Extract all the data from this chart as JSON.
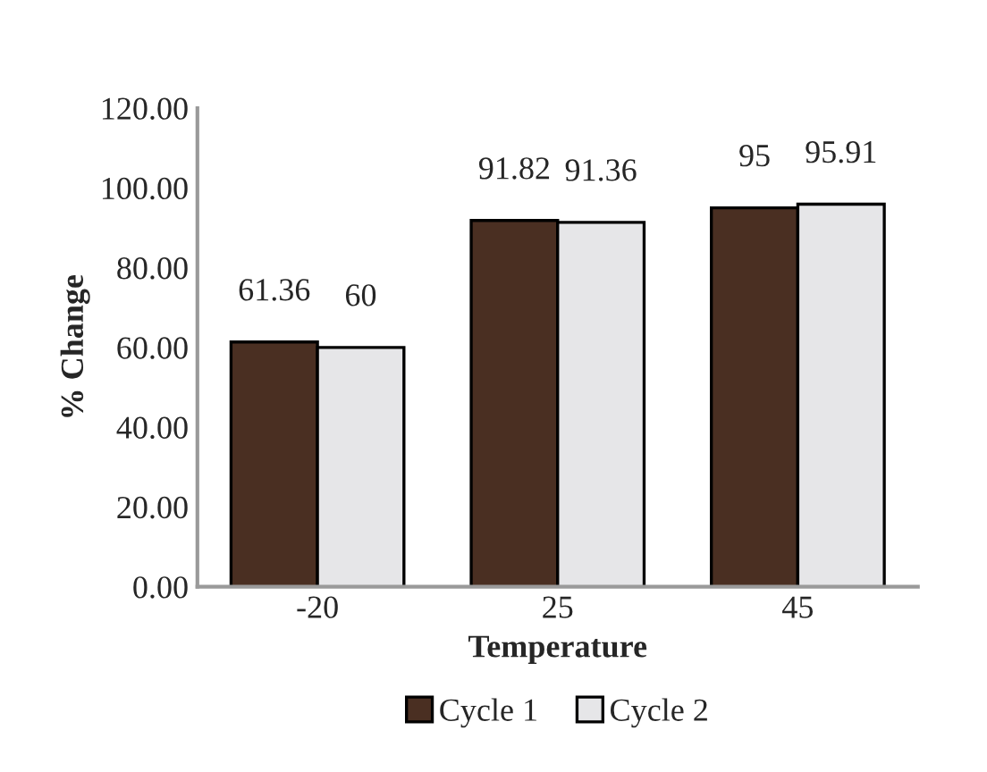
{
  "chart_data": {
    "type": "bar",
    "xlabel": "Temperature",
    "ylabel": "% Change",
    "categories": [
      "-20",
      "25",
      "45"
    ],
    "series": [
      {
        "name": "Cycle 1",
        "color": "#4a2f22",
        "values": [
          61.36,
          91.82,
          95
        ]
      },
      {
        "name": "Cycle 2",
        "color": "#e6e6e8",
        "values": [
          60,
          91.36,
          95.91
        ]
      }
    ],
    "ylim": [
      0,
      120
    ],
    "yticks": [
      {
        "value": 0,
        "label": "0.00"
      },
      {
        "value": 20,
        "label": "20.00"
      },
      {
        "value": 40,
        "label": "40.00"
      },
      {
        "value": 60,
        "label": "60.00"
      },
      {
        "value": 80,
        "label": "80.00"
      },
      {
        "value": 100,
        "label": "100.00"
      },
      {
        "value": 120,
        "label": "120.00"
      }
    ],
    "data_labels": true,
    "grid": false,
    "legend": "bottom"
  }
}
